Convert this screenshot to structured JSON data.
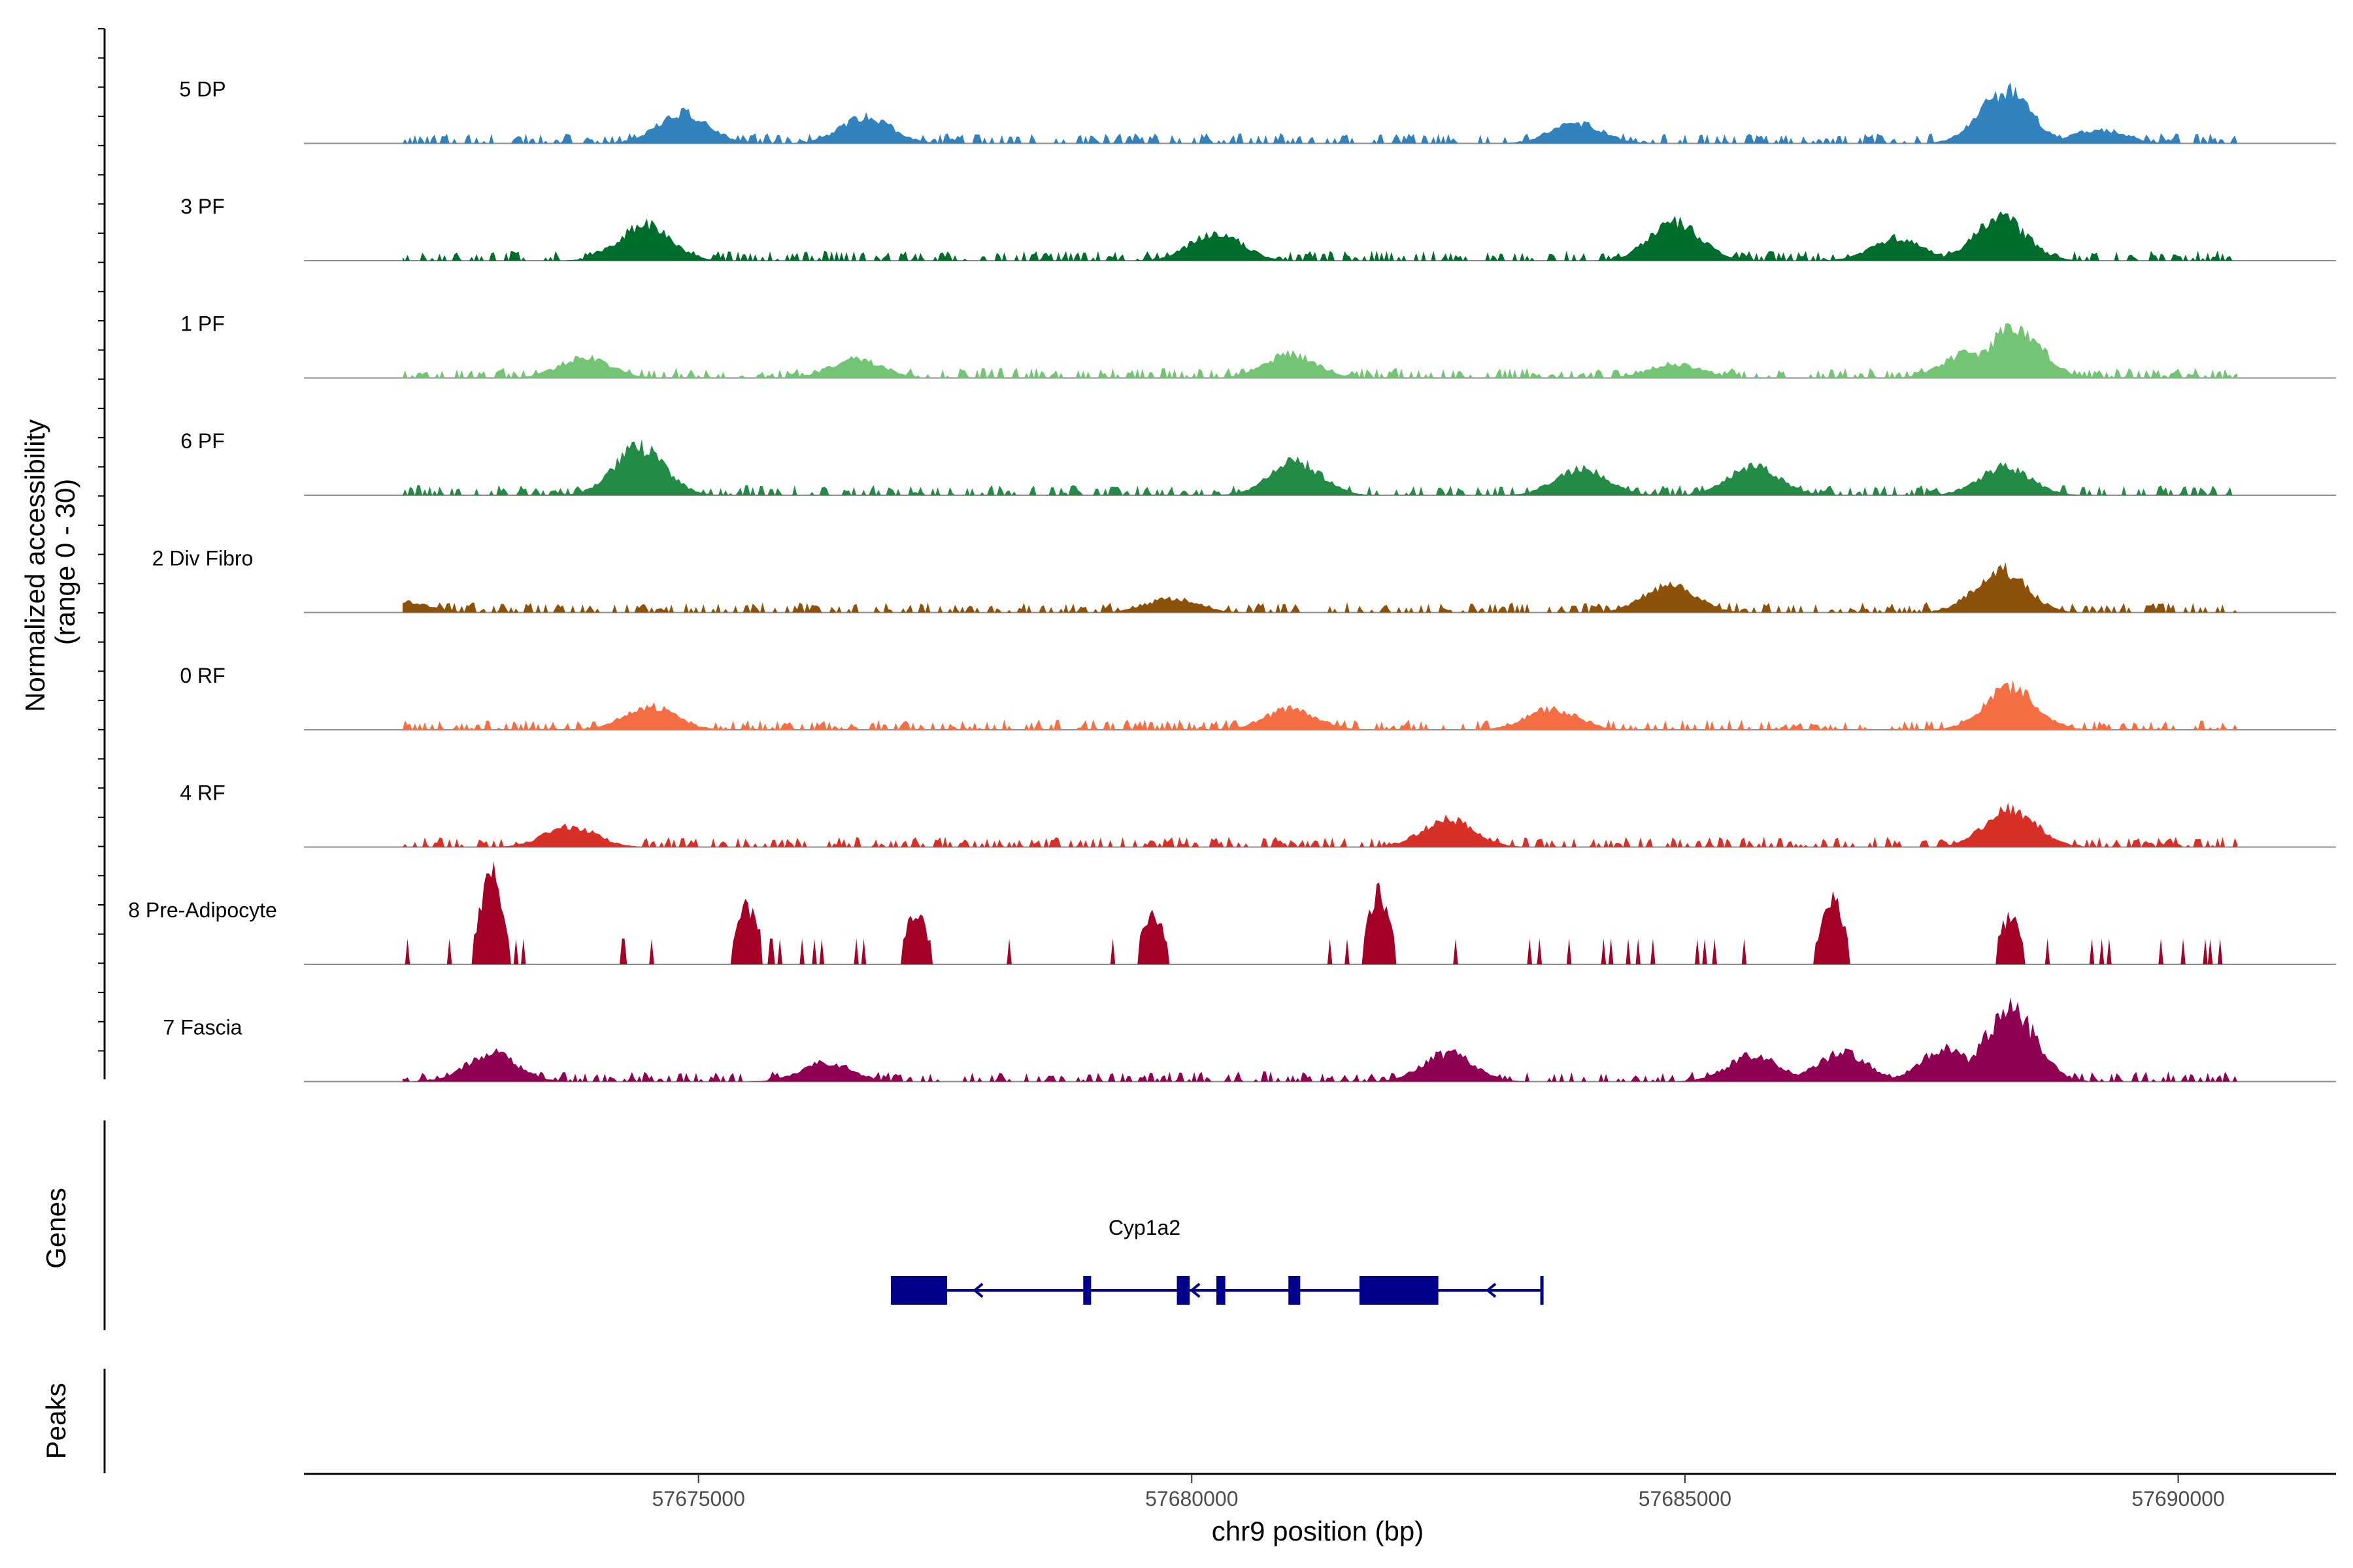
{
  "chart_data": {
    "type": "area",
    "title": "",
    "xlabel": "chr9 position (bp)",
    "ylabel": "Normalized accessibility\n(range 0 - 30)",
    "ylabel_lines": [
      "Normalized accessibility",
      "(range 0 - 30)"
    ],
    "ylim": [
      0,
      30
    ],
    "xlim": [
      57671000,
      57691600
    ],
    "x_ticks": [
      57675000,
      57680000,
      57685000,
      57690000
    ],
    "x_tick_labels": [
      "57675000",
      "57680000",
      "57685000",
      "57690000"
    ],
    "grid": false,
    "series": [
      {
        "name": "5 DP",
        "color": "#3182bd",
        "peaks": [
          [
            57674850,
            0.32
          ],
          [
            57676700,
            0.28
          ],
          [
            57683900,
            0.22
          ],
          [
            57688250,
            0.55
          ],
          [
            57689200,
            0.15
          ]
        ]
      },
      {
        "name": "3 PF",
        "color": "#006d2c",
        "peaks": [
          [
            57674450,
            0.38
          ],
          [
            57680250,
            0.3
          ],
          [
            57684900,
            0.4
          ],
          [
            57687150,
            0.24
          ],
          [
            57688200,
            0.45
          ]
        ]
      },
      {
        "name": "1 PF",
        "color": "#74c476",
        "peaks": [
          [
            57673850,
            0.22
          ],
          [
            57676600,
            0.2
          ],
          [
            57681000,
            0.25
          ],
          [
            57684900,
            0.15
          ],
          [
            57687900,
            0.28
          ],
          [
            57688350,
            0.55
          ]
        ]
      },
      {
        "name": "6 PF",
        "color": "#238b45",
        "peaks": [
          [
            57674400,
            0.5
          ],
          [
            57681050,
            0.35
          ],
          [
            57683950,
            0.28
          ],
          [
            57685700,
            0.3
          ],
          [
            57688250,
            0.3
          ]
        ]
      },
      {
        "name": "2 Div Fibro",
        "color": "#8c510a",
        "peaks": [
          [
            57672000,
            0.12
          ],
          [
            57679800,
            0.15
          ],
          [
            57684850,
            0.3
          ],
          [
            57688200,
            0.45
          ]
        ]
      },
      {
        "name": "0 RF",
        "color": "#f46d43",
        "peaks": [
          [
            57674500,
            0.25
          ],
          [
            57681000,
            0.22
          ],
          [
            57683650,
            0.22
          ],
          [
            57688300,
            0.45
          ]
        ]
      },
      {
        "name": "4 RF",
        "color": "#d73027",
        "peaks": [
          [
            57673700,
            0.22
          ],
          [
            57682600,
            0.3
          ],
          [
            57688300,
            0.4
          ]
        ]
      },
      {
        "name": "8 Pre-Adipocyte",
        "color": "#a50026",
        "peaks": [
          [
            57672900,
            1.0
          ],
          [
            57675500,
            0.6
          ],
          [
            57677200,
            0.55
          ],
          [
            57679600,
            0.55
          ],
          [
            57681900,
            0.75
          ],
          [
            57686500,
            0.7
          ],
          [
            57688300,
            0.5
          ]
        ]
      },
      {
        "name": "7 Fascia",
        "color": "#8e0152",
        "peaks": [
          [
            57672900,
            0.3
          ],
          [
            57676300,
            0.2
          ],
          [
            57682600,
            0.3
          ],
          [
            57685700,
            0.28
          ],
          [
            57686600,
            0.3
          ],
          [
            57687650,
            0.35
          ],
          [
            57688300,
            0.75
          ]
        ]
      }
    ],
    "genes": {
      "panel_title": "Genes",
      "items": [
        {
          "name": "Cyp1a2",
          "start": 57676950,
          "end": 57683550,
          "strand": "-",
          "exons": [
            [
              57676950,
              57677520
            ],
            [
              57679850,
              57679950
            ],
            [
              57679850,
              57679980
            ],
            [
              57680250,
              57680340
            ],
            [
              57680980,
              57681100
            ],
            [
              57681700,
              57682500
            ],
            [
              57678900,
              57678980
            ]
          ]
        }
      ]
    },
    "peaks": {
      "panel_title": "Peaks",
      "items": []
    }
  }
}
